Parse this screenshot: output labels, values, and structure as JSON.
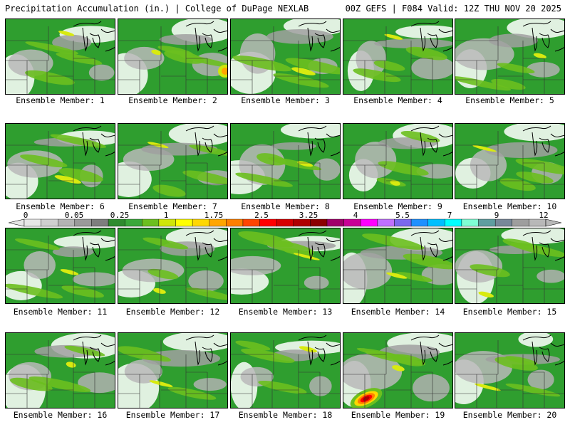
{
  "header": {
    "left": "Precipitation Accumulation (in.) | College of DuPage NEXLAB",
    "right": "00Z GEFS | F084 Valid: 12Z THU NOV 20 2025"
  },
  "colorbar": {
    "tick_labels": [
      "0",
      "0.05",
      "0.25",
      "1",
      "1.75",
      "2.5",
      "3.25",
      "4",
      "5.5",
      "7",
      "9",
      "12"
    ],
    "colors": [
      "#e6e6e6",
      "#cfcfcf",
      "#b4b4b4",
      "#9a9a9a",
      "#7e7e7e",
      "#2e8b2e",
      "#3aa83a",
      "#6cbf1f",
      "#cfe60a",
      "#ffff00",
      "#ffd700",
      "#ffa500",
      "#ff7f00",
      "#ff4500",
      "#ff0000",
      "#d60000",
      "#b00000",
      "#8b0000",
      "#a0006a",
      "#c80096",
      "#ff00ff",
      "#c070ff",
      "#7b68ee",
      "#1e90ff",
      "#00bfff",
      "#00ffff",
      "#7fffd4",
      "#5f9ea0",
      "#778899",
      "#9e9e9e",
      "#b8b8b8"
    ]
  },
  "panels": [
    {
      "label": "Ensemble Member: 1"
    },
    {
      "label": "Ensemble Member: 2"
    },
    {
      "label": "Ensemble Member: 3"
    },
    {
      "label": "Ensemble Member: 4"
    },
    {
      "label": "Ensemble Member: 5"
    },
    {
      "label": "Ensemble Member: 6"
    },
    {
      "label": "Ensemble Member: 7"
    },
    {
      "label": "Ensemble Member: 8"
    },
    {
      "label": "Ensemble Member: 9"
    },
    {
      "label": "Ensemble Member: 10"
    },
    {
      "label": "Ensemble Member: 11"
    },
    {
      "label": "Ensemble Member: 12"
    },
    {
      "label": "Ensemble Member: 13"
    },
    {
      "label": "Ensemble Member: 14"
    },
    {
      "label": "Ensemble Member: 15"
    },
    {
      "label": "Ensemble Member: 16"
    },
    {
      "label": "Ensemble Member: 17"
    },
    {
      "label": "Ensemble Member: 18"
    },
    {
      "label": "Ensemble Member: 19"
    },
    {
      "label": "Ensemble Member: 20"
    }
  ]
}
